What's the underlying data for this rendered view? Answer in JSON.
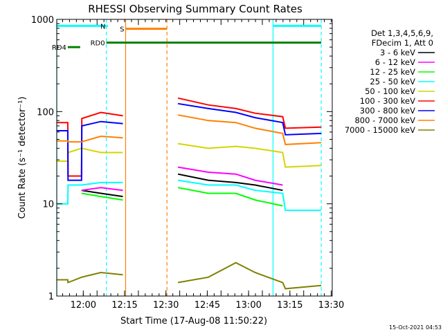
{
  "chart_data": {
    "type": "line",
    "title": "RHESSI Observing Summary Count Rates",
    "xlabel": "Start Time (17-Aug-08 11:50:22)",
    "ylabel": "Count Rate (s⁻¹ detector⁻¹)",
    "yscale": "log",
    "ylim": [
      1,
      1000
    ],
    "xlim_minutes": [
      0,
      100
    ],
    "yticks": [
      {
        "label": "1",
        "value": 1
      },
      {
        "label": "10",
        "value": 10
      },
      {
        "label": "100",
        "value": 100
      },
      {
        "label": "1000",
        "value": 1000
      }
    ],
    "xticks": [
      {
        "label": "12:00",
        "t": 9.63
      },
      {
        "label": "12:15",
        "t": 24.63
      },
      {
        "label": "12:30",
        "t": 39.63
      },
      {
        "label": "12:45",
        "t": 54.63
      },
      {
        "label": "13:00",
        "t": 69.63
      },
      {
        "label": "13:15",
        "t": 84.63
      },
      {
        "label": "13:30",
        "t": 99.63
      }
    ],
    "legend": {
      "placement": "right",
      "header": [
        "Det 1,3,4,5,6,9,",
        "FDecim 1, Att 0"
      ]
    },
    "series": [
      {
        "name": "3 - 6 keV",
        "color": "#000000",
        "values": [
          [
            0,
            null
          ],
          [
            9,
            14
          ],
          [
            16,
            13
          ],
          [
            24,
            12
          ],
          [
            25,
            null
          ],
          [
            43,
            null
          ],
          [
            44,
            21
          ],
          [
            55,
            18
          ],
          [
            65,
            17
          ],
          [
            72,
            16
          ],
          [
            82,
            14
          ],
          [
            83,
            null
          ],
          [
            100,
            null
          ]
        ]
      },
      {
        "name": "6 - 12 keV",
        "color": "#ff00ff",
        "values": [
          [
            0,
            null
          ],
          [
            9,
            14
          ],
          [
            16,
            15
          ],
          [
            24,
            14
          ],
          [
            25,
            null
          ],
          [
            43,
            null
          ],
          [
            44,
            25
          ],
          [
            55,
            22
          ],
          [
            65,
            21
          ],
          [
            72,
            18
          ],
          [
            82,
            16
          ],
          [
            83,
            null
          ],
          [
            100,
            null
          ]
        ]
      },
      {
        "name": "12 - 25 keV",
        "color": "#00ff00",
        "values": [
          [
            0,
            null
          ],
          [
            9,
            13
          ],
          [
            16,
            12
          ],
          [
            24,
            11
          ],
          [
            25,
            null
          ],
          [
            43,
            null
          ],
          [
            44,
            15
          ],
          [
            55,
            13
          ],
          [
            65,
            13
          ],
          [
            72,
            11
          ],
          [
            82,
            9.5
          ],
          [
            83,
            null
          ],
          [
            100,
            null
          ]
        ]
      },
      {
        "name": "25 - 50 keV",
        "color": "#00ffff",
        "values": [
          [
            0,
            10
          ],
          [
            4,
            10
          ],
          [
            4.1,
            16
          ],
          [
            9,
            16
          ],
          [
            16,
            17
          ],
          [
            24,
            17
          ],
          [
            25,
            null
          ],
          [
            43,
            null
          ],
          [
            44,
            18
          ],
          [
            55,
            16
          ],
          [
            65,
            16
          ],
          [
            72,
            14
          ],
          [
            82,
            13
          ],
          [
            83,
            8.5
          ],
          [
            96,
            8.5
          ],
          [
            100,
            null
          ]
        ]
      },
      {
        "name": "50 - 100 keV",
        "color": "#d4d400",
        "values": [
          [
            0,
            29
          ],
          [
            4,
            29
          ],
          [
            4.1,
            36
          ],
          [
            9,
            40
          ],
          [
            16,
            36
          ],
          [
            24,
            36
          ],
          [
            25,
            null
          ],
          [
            43,
            null
          ],
          [
            44,
            45
          ],
          [
            55,
            40
          ],
          [
            65,
            42
          ],
          [
            72,
            40
          ],
          [
            82,
            36
          ],
          [
            83,
            25
          ],
          [
            96,
            26
          ],
          [
            100,
            null
          ]
        ]
      },
      {
        "name": "100 - 300 keV",
        "color": "#ff0000",
        "values": [
          [
            0,
            76
          ],
          [
            4,
            76
          ],
          [
            4.1,
            20
          ],
          [
            9,
            20
          ],
          [
            9.1,
            84
          ],
          [
            16,
            98
          ],
          [
            24,
            90
          ],
          [
            25,
            null
          ],
          [
            43,
            null
          ],
          [
            44,
            140
          ],
          [
            55,
            118
          ],
          [
            65,
            108
          ],
          [
            72,
            96
          ],
          [
            82,
            88
          ],
          [
            83,
            66
          ],
          [
            96,
            68
          ],
          [
            100,
            null
          ]
        ]
      },
      {
        "name": "300 - 800 keV",
        "color": "#0000ff",
        "values": [
          [
            0,
            62
          ],
          [
            4,
            62
          ],
          [
            4.1,
            18
          ],
          [
            9,
            18
          ],
          [
            9.1,
            70
          ],
          [
            16,
            78
          ],
          [
            24,
            74
          ],
          [
            25,
            null
          ],
          [
            43,
            null
          ],
          [
            44,
            122
          ],
          [
            55,
            108
          ],
          [
            65,
            98
          ],
          [
            72,
            86
          ],
          [
            82,
            76
          ],
          [
            83,
            56
          ],
          [
            96,
            58
          ],
          [
            100,
            null
          ]
        ]
      },
      {
        "name": "800 - 7000 keV",
        "color": "#ff8000",
        "values": [
          [
            0,
            48
          ],
          [
            4,
            48
          ],
          [
            4.1,
            47
          ],
          [
            9,
            47
          ],
          [
            16,
            54
          ],
          [
            24,
            52
          ],
          [
            25,
            null
          ],
          [
            43,
            null
          ],
          [
            44,
            92
          ],
          [
            55,
            80
          ],
          [
            65,
            76
          ],
          [
            72,
            66
          ],
          [
            82,
            58
          ],
          [
            83,
            44
          ],
          [
            96,
            46
          ],
          [
            100,
            null
          ]
        ]
      },
      {
        "name": "7000 - 15000 keV",
        "color": "#808000",
        "values": [
          [
            0,
            1.5
          ],
          [
            4,
            1.5
          ],
          [
            4.1,
            1.4
          ],
          [
            9,
            1.6
          ],
          [
            16,
            1.8
          ],
          [
            24,
            1.7
          ],
          [
            25,
            null
          ],
          [
            43,
            null
          ],
          [
            44,
            1.4
          ],
          [
            55,
            1.6
          ],
          [
            65,
            2.3
          ],
          [
            72,
            1.8
          ],
          [
            82,
            1.4
          ],
          [
            83,
            1.2
          ],
          [
            96,
            1.3
          ],
          [
            100,
            null
          ]
        ]
      }
    ],
    "vlines": [
      {
        "color": "#00ffff",
        "dashed": false,
        "t": 0
      },
      {
        "color": "#00ffff",
        "dashed": true,
        "t": 18
      },
      {
        "color": "#ff8000",
        "dashed": false,
        "t": 25
      },
      {
        "color": "#ff8000",
        "dashed": true,
        "t": 40
      },
      {
        "color": "#00ffff",
        "dashed": false,
        "t": 78.5
      },
      {
        "color": "#00ffff",
        "dashed": true,
        "t": 96
      }
    ],
    "flag_bars": [
      {
        "label": "",
        "color": "#00ffff",
        "y": 850,
        "ranges": [
          [
            0,
            18
          ],
          [
            78.5,
            96
          ]
        ]
      },
      {
        "label": "N",
        "color": "#00ffff",
        "y": 850,
        "ranges": [
          [
            18.2,
            18.6
          ]
        ]
      },
      {
        "label": "S",
        "color": "#ff8000",
        "y": 790,
        "ranges": [
          [
            25,
            40
          ]
        ]
      },
      {
        "label": "RD0",
        "color": "#008000",
        "y": 560,
        "ranges": [
          [
            18,
            96
          ]
        ]
      },
      {
        "label": "RD4",
        "color": "#008000",
        "y": 500,
        "ranges": [
          [
            4,
            8.5
          ]
        ]
      }
    ]
  },
  "footer": {
    "timestamp": "15-Oct-2021 04:53"
  }
}
